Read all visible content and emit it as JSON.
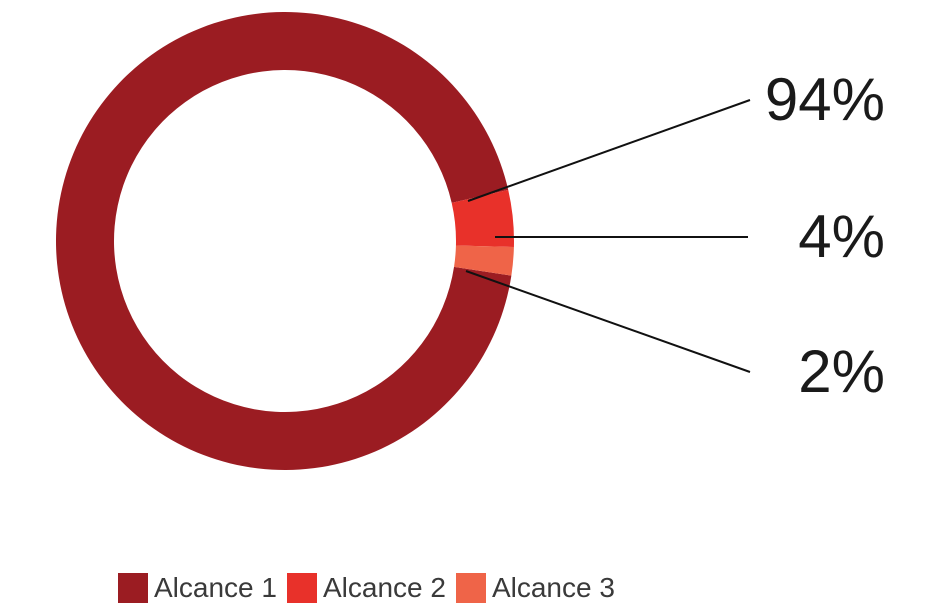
{
  "chart_data": {
    "type": "pie",
    "donut": true,
    "categories": [
      "Alcance 1",
      "Alcance 2",
      "Alcance 3"
    ],
    "values": [
      94,
      4,
      2
    ],
    "labels": [
      "94%",
      "4%",
      "2%"
    ],
    "colors": [
      "#9b1c22",
      "#e8312a",
      "#ef6448"
    ],
    "legend_position": "bottom"
  }
}
